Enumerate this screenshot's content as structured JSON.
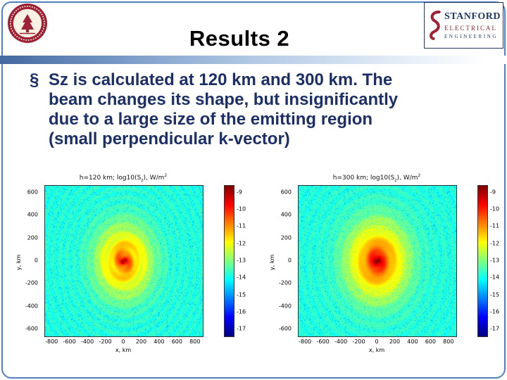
{
  "slide": {
    "title": "Results 2",
    "bullet_char": "§",
    "body_lines": [
      "Sz is calculated at 120 km and 300 km. The",
      "beam changes its shape, but insignificantly",
      "due to a large size of the emitting region",
      "(small perpendicular k-vector)"
    ]
  },
  "logos": {
    "ee": {
      "name_line": "STANFORD",
      "dept_line": "ELECTRICAL",
      "eng_line": "ENGINEERING"
    }
  },
  "colors": {
    "stanford_red": "#9d2235",
    "navy": "#1f3864",
    "frame_blue": "#4f81bd",
    "body_text": "#1c2f66",
    "title_color": "#000000"
  },
  "chart_data": [
    {
      "type": "heatmap",
      "colormap": "jet",
      "title_parts": {
        "prefix": "h=120 km; log10(S",
        "sub": "z",
        "mid": "), W/m",
        "sup": "2"
      },
      "xlabel": "x, km",
      "ylabel": "y, km",
      "xlim": [
        -880,
        880
      ],
      "ylim": [
        -660,
        660
      ],
      "xticks": [
        -800,
        -600,
        -400,
        -200,
        0,
        200,
        400,
        600,
        800
      ],
      "yticks": [
        600,
        400,
        200,
        0,
        -200,
        -400,
        -600
      ],
      "colorbar_ticks": [
        -9,
        -10,
        -11,
        -12,
        -13,
        -14,
        -15,
        -16,
        -17
      ],
      "value_range": [
        -17.4,
        -8.6
      ],
      "radial_profile": [
        [
          0,
          -9.0
        ],
        [
          18,
          -9.3
        ],
        [
          40,
          -10.1
        ],
        [
          70,
          -10.8
        ],
        [
          120,
          -11.4
        ],
        [
          190,
          -11.9
        ],
        [
          260,
          -12.3
        ],
        [
          330,
          -12.9
        ],
        [
          420,
          -13.4
        ],
        [
          540,
          -13.7
        ],
        [
          1200,
          -13.85
        ]
      ],
      "ripple_amplitude": 0.16,
      "ripple_wavelength_km": 80,
      "swirl_amplitude": 0.5
    },
    {
      "type": "heatmap",
      "colormap": "jet",
      "title_parts": {
        "prefix": "h=300 km; log10(S",
        "sub": "z",
        "mid": "), W/m",
        "sup": "2"
      },
      "xlabel": "x, km",
      "ylabel": "y, km",
      "xlim": [
        -880,
        880
      ],
      "ylim": [
        -660,
        660
      ],
      "xticks": [
        -800,
        -600,
        -400,
        -200,
        0,
        200,
        400,
        600,
        800
      ],
      "yticks": [
        600,
        400,
        200,
        0,
        -200,
        -400,
        -600
      ],
      "colorbar_ticks": [
        -9,
        -10,
        -11,
        -12,
        -13,
        -14,
        -15,
        -16,
        -17
      ],
      "value_range": [
        -17.4,
        -8.6
      ],
      "radial_profile": [
        [
          0,
          -8.8
        ],
        [
          30,
          -9.1
        ],
        [
          60,
          -9.8
        ],
        [
          110,
          -10.7
        ],
        [
          170,
          -11.3
        ],
        [
          240,
          -11.9
        ],
        [
          320,
          -12.4
        ],
        [
          400,
          -13.0
        ],
        [
          500,
          -13.5
        ],
        [
          640,
          -13.7
        ],
        [
          1200,
          -13.85
        ]
      ],
      "ripple_amplitude": 0.14,
      "ripple_wavelength_km": 95,
      "swirl_amplitude": 0.32
    }
  ]
}
